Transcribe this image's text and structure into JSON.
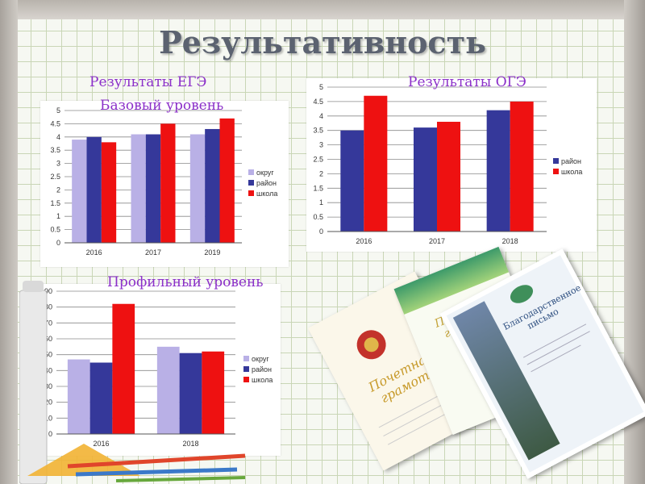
{
  "slide": {
    "title": "Результативность",
    "ege_label": "Результаты ЕГЭ",
    "ege_base_label": "Базовый уровень",
    "oge_label": "Результаты ОГЭ",
    "ege_profile_label": "Профильный уровень"
  },
  "colors": {
    "title": "#5b6270",
    "labels": "#8b2fc9",
    "okrug": "#b9b0e6",
    "raion": "#35389a",
    "shkola": "#ee1111"
  },
  "certificates": {
    "doc1_title": "Почетная грамота",
    "doc2_title": "Почетная грамота",
    "doc3_title": "Благодарственное письмо"
  },
  "chart_data": [
    {
      "type": "bar",
      "name_ref": "ege_base",
      "categories": [
        "2016",
        "2017",
        "2019"
      ],
      "series": [
        {
          "name": "округ",
          "values": [
            3.9,
            4.1,
            4.1
          ]
        },
        {
          "name": "район",
          "values": [
            4.0,
            4.1,
            4.3
          ]
        },
        {
          "name": "школа",
          "values": [
            3.8,
            4.5,
            4.7
          ]
        }
      ],
      "ylim": [
        0,
        5
      ],
      "yticks": [
        "0",
        "0.5",
        "1",
        "1.5",
        "2",
        "2.5",
        "3",
        "3.5",
        "4",
        "4.5",
        "5"
      ],
      "grid": true,
      "legend": "right"
    },
    {
      "type": "bar",
      "name_ref": "oge",
      "categories": [
        "2016",
        "2017",
        "2018"
      ],
      "series": [
        {
          "name": "район",
          "values": [
            3.5,
            3.6,
            4.2
          ]
        },
        {
          "name": "школа",
          "values": [
            4.7,
            3.8,
            4.5
          ]
        }
      ],
      "ylim": [
        0,
        5
      ],
      "yticks": [
        "0",
        "0.5",
        "1",
        "1.5",
        "2",
        "2.5",
        "3",
        "3.5",
        "4",
        "4.5",
        "5"
      ],
      "grid": true,
      "legend": "right"
    },
    {
      "type": "bar",
      "name_ref": "ege_profile",
      "categories": [
        "2016",
        "2018"
      ],
      "series": [
        {
          "name": "округ",
          "values": [
            47,
            55
          ]
        },
        {
          "name": "район",
          "values": [
            45,
            51
          ]
        },
        {
          "name": "школа",
          "values": [
            82,
            52
          ]
        }
      ],
      "ylim": [
        0,
        90
      ],
      "yticks": [
        "0",
        "10",
        "20",
        "30",
        "40",
        "50",
        "60",
        "70",
        "80",
        "90"
      ],
      "grid": true,
      "legend": "right"
    }
  ]
}
